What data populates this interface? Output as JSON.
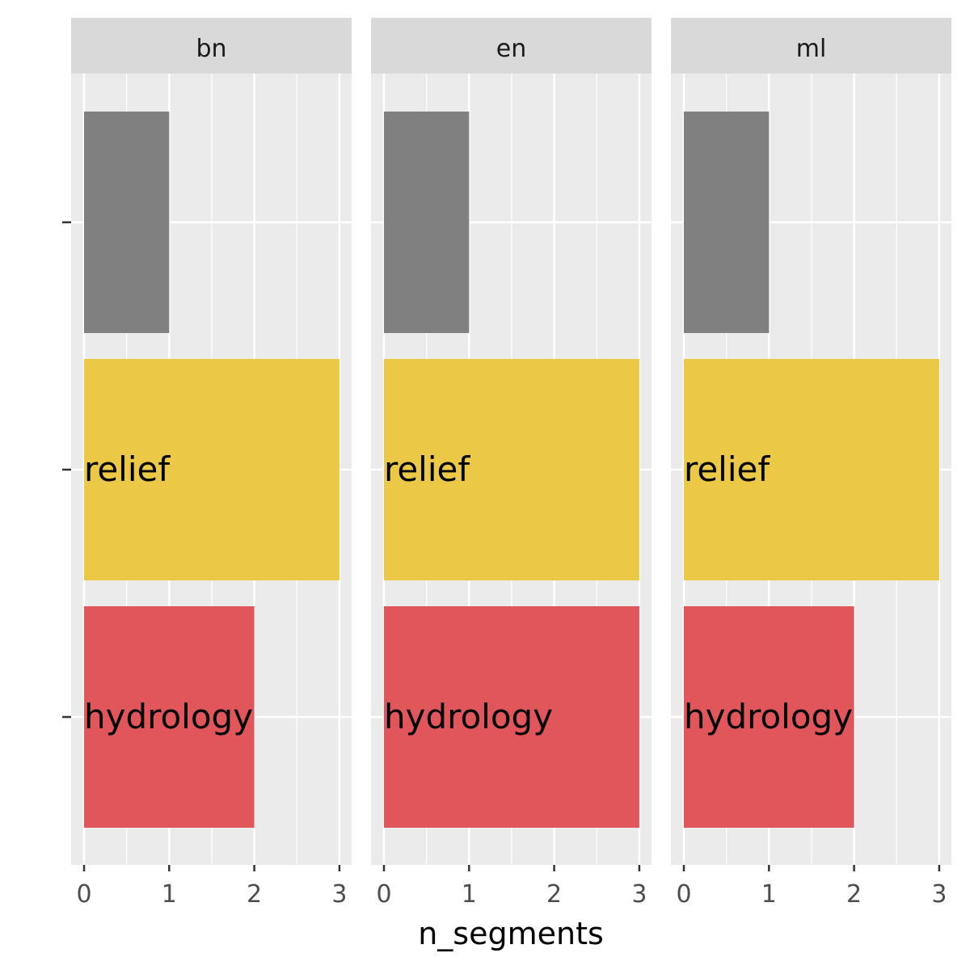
{
  "chart_data": {
    "type": "bar",
    "orientation": "horizontal",
    "facet_by": "language",
    "facets": [
      {
        "label": "bn",
        "bars": [
          {
            "category": "",
            "value": 1,
            "color": "#808080"
          },
          {
            "category": "relief",
            "value": 3,
            "color": "#EBC947"
          },
          {
            "category": "hydrology",
            "value": 2,
            "color": "#E0565B"
          }
        ]
      },
      {
        "label": "en",
        "bars": [
          {
            "category": "",
            "value": 1,
            "color": "#808080"
          },
          {
            "category": "relief",
            "value": 3,
            "color": "#EBC947"
          },
          {
            "category": "hydrology",
            "value": 3,
            "color": "#E0565B"
          }
        ]
      },
      {
        "label": "ml",
        "bars": [
          {
            "category": "",
            "value": 1,
            "color": "#808080"
          },
          {
            "category": "relief",
            "value": 3,
            "color": "#EBC947"
          },
          {
            "category": "hydrology",
            "value": 2,
            "color": "#E0565B"
          }
        ]
      }
    ],
    "xlabel": "n_segments",
    "ylabel": "",
    "xlim": [
      0,
      3
    ],
    "xticks": [
      0,
      1,
      2,
      3
    ],
    "grid": true,
    "legend": "none",
    "colors": {
      "panel_background": "#EBEBEB",
      "strip_background": "#D9D9D9",
      "grid": "#FFFFFF",
      "tick_text": "#4D4D4D"
    }
  }
}
